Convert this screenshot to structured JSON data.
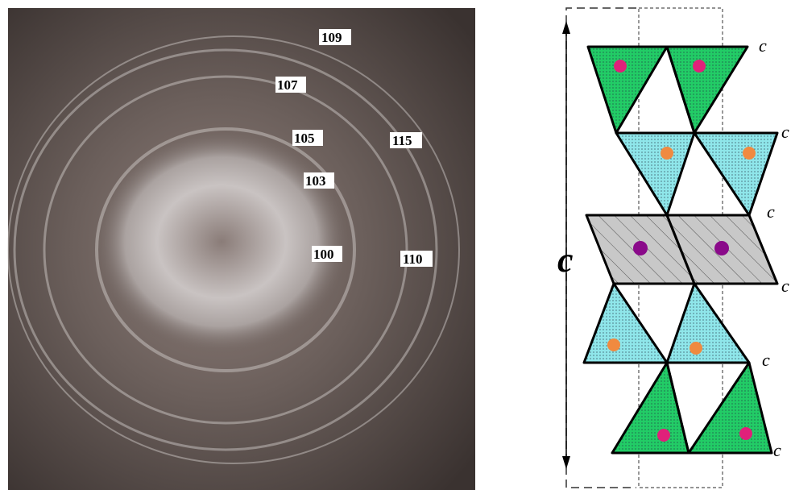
{
  "diffraction": {
    "reflections": [
      "109",
      "107",
      "105",
      "115",
      "103",
      "100",
      "110"
    ]
  },
  "structure": {
    "axis_label": "c",
    "layer_labels": [
      "c",
      "c",
      "c",
      "c",
      "c",
      "c"
    ]
  }
}
